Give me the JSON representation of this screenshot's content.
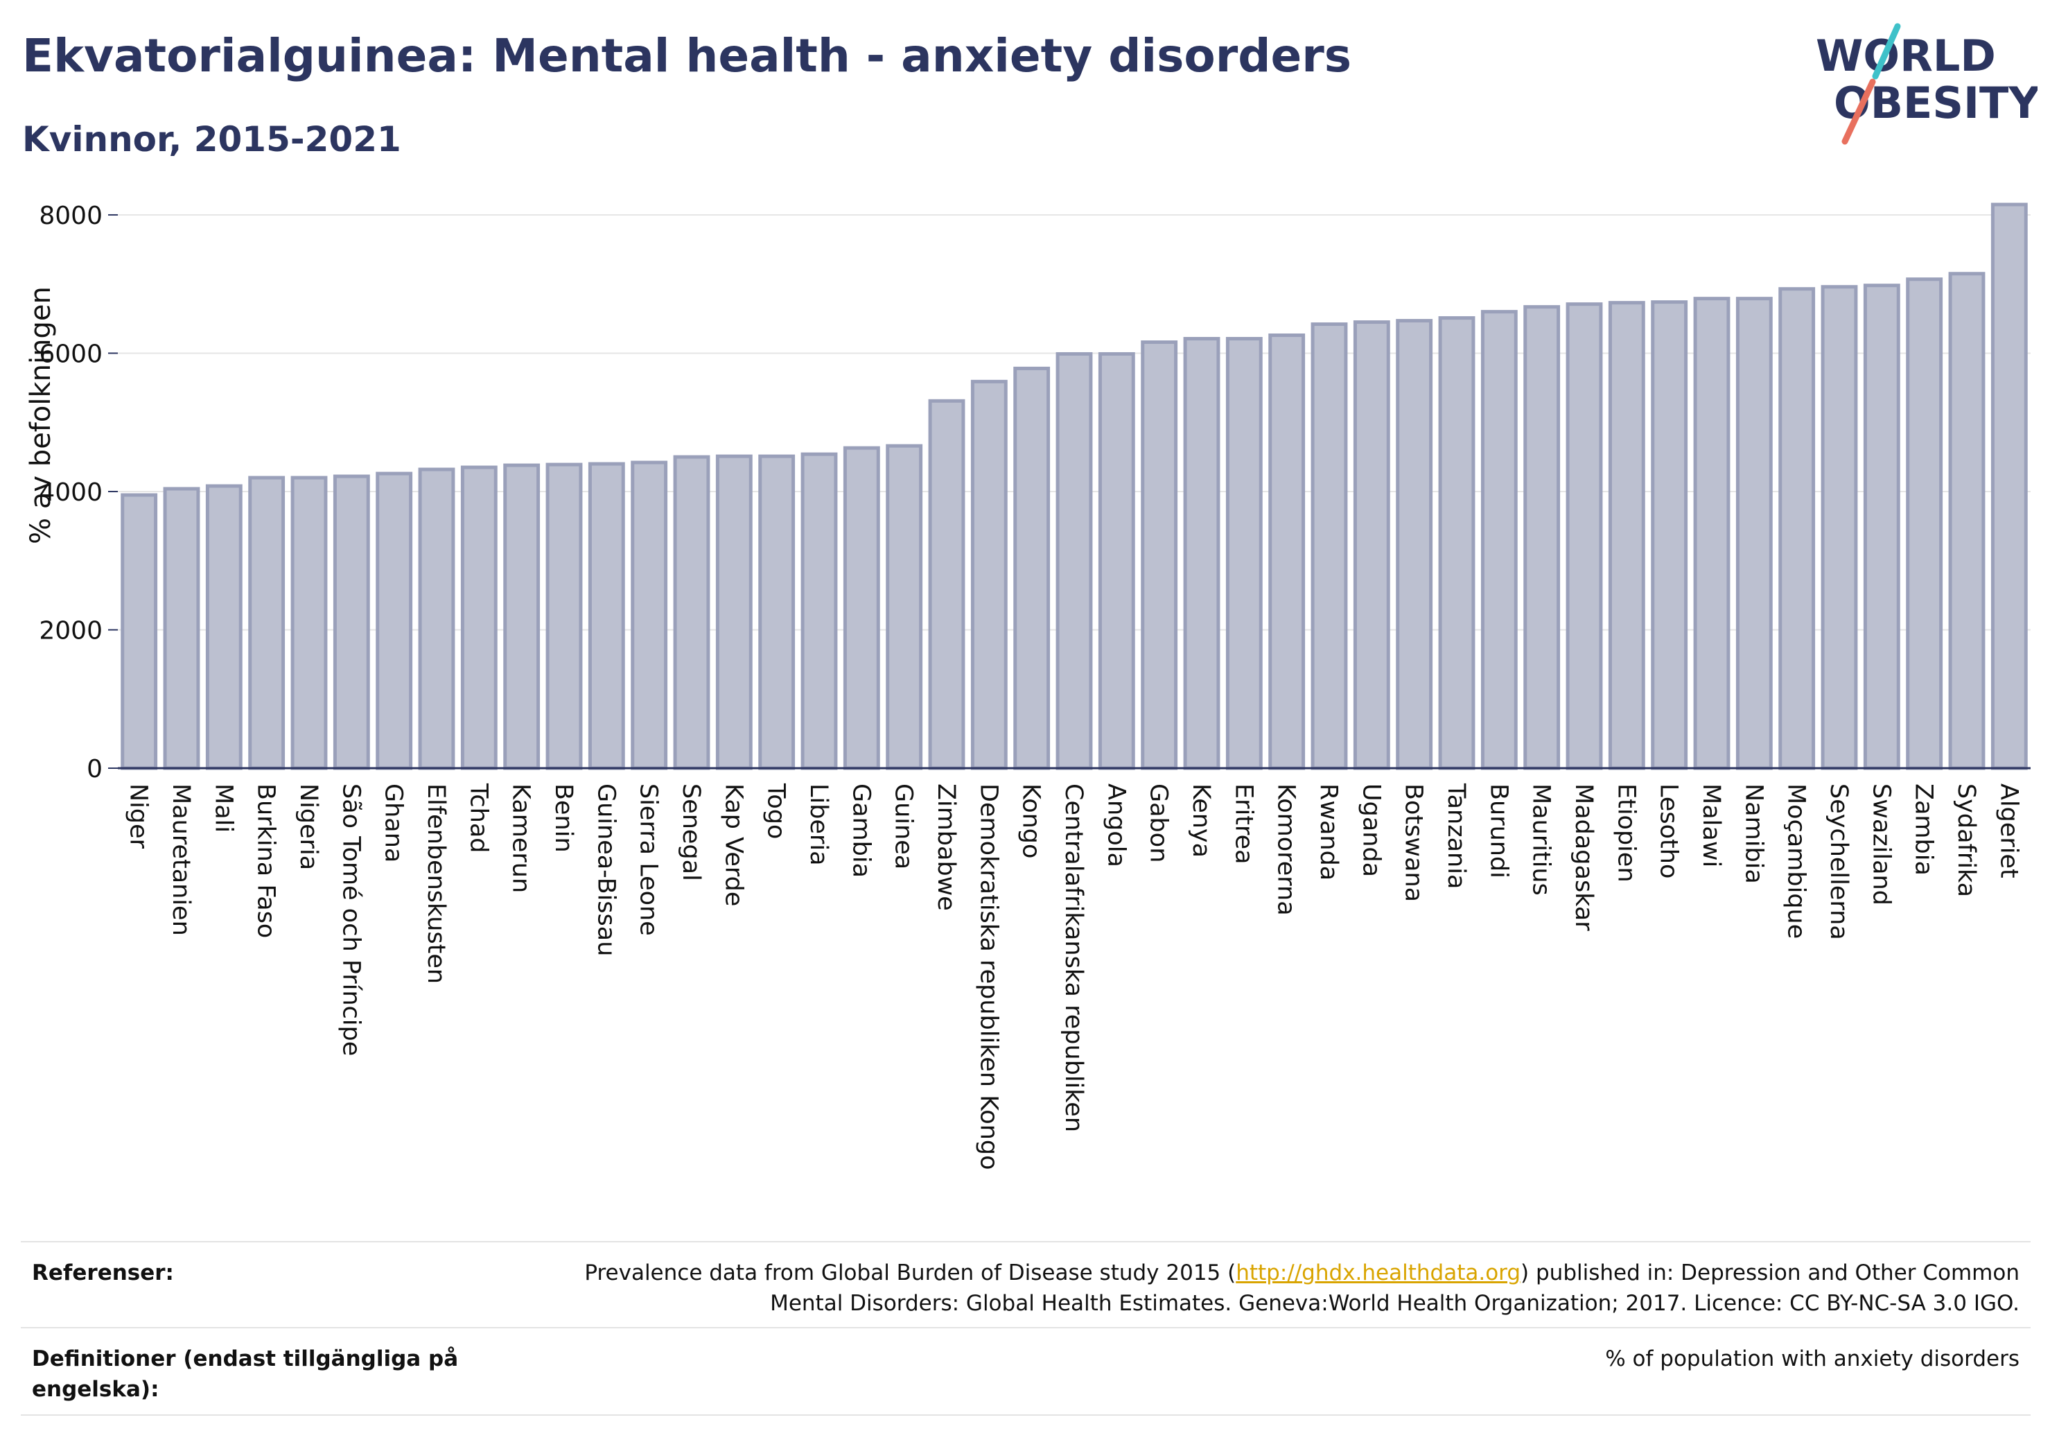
{
  "header": {
    "title": "Ekvatorialguinea: Mental health - anxiety disorders",
    "subtitle": "Kvinnor, 2015-2021",
    "logo_line1": "WORLD",
    "logo_line2": "OBESITY"
  },
  "colors": {
    "title": "#2c3560",
    "bar_fill": "#bcc0d0",
    "bar_stroke": "#9aa0ba",
    "axis": "#2c3560",
    "logo_teal": "#3fc1c9",
    "logo_coral": "#e8705e",
    "link": "#d9a400"
  },
  "chart_data": {
    "type": "bar",
    "ylabel": "% av befolkningen",
    "ylim": [
      0,
      8200
    ],
    "yticks": [
      0,
      2000,
      4000,
      6000,
      8000
    ],
    "grid": true,
    "categories": [
      "Niger",
      "Mauretanien",
      "Mali",
      "Burkina Faso",
      "Nigeria",
      "São Tomé och Príncipe",
      "Ghana",
      "Elfenbenskusten",
      "Tchad",
      "Kamerun",
      "Benin",
      "Guinea-Bissau",
      "Sierra Leone",
      "Senegal",
      "Kap Verde",
      "Togo",
      "Liberia",
      "Gambia",
      "Guinea",
      "Zimbabwe",
      "Demokratiska republiken Kongo",
      "Kongo",
      "Centralafrikanska republiken",
      "Angola",
      "Gabon",
      "Kenya",
      "Eritrea",
      "Komorerna",
      "Rwanda",
      "Uganda",
      "Botswana",
      "Tanzania",
      "Burundi",
      "Mauritius",
      "Madagaskar",
      "Etiopien",
      "Lesotho",
      "Malawi",
      "Namibia",
      "Moçambique",
      "Seychellerna",
      "Swaziland",
      "Zambia",
      "Sydafrika",
      "Algeriet"
    ],
    "values": [
      3950,
      4040,
      4080,
      4200,
      4200,
      4220,
      4260,
      4320,
      4350,
      4380,
      4390,
      4400,
      4420,
      4500,
      4510,
      4510,
      4540,
      4630,
      4660,
      5310,
      5590,
      5780,
      5990,
      5990,
      6160,
      6210,
      6210,
      6260,
      6420,
      6450,
      6470,
      6510,
      6600,
      6670,
      6710,
      6730,
      6740,
      6790,
      6790,
      6930,
      6960,
      6980,
      7070,
      7150,
      8150
    ]
  },
  "footer": {
    "references_label": "Referenser:",
    "references_text_before": "Prevalence data from Global Burden of Disease study 2015 (",
    "references_link": "http://ghdx.healthdata.org",
    "references_text_after": ") published in: Depression and Other Common Mental Disorders: Global Health Estimates. Geneva:World Health Organization; 2017. Licence: CC BY-NC-SA 3.0 IGO.",
    "definitions_label": "Definitioner (endast tillgängliga på engelska):",
    "definitions_text": "% of population with anxiety disorders"
  }
}
